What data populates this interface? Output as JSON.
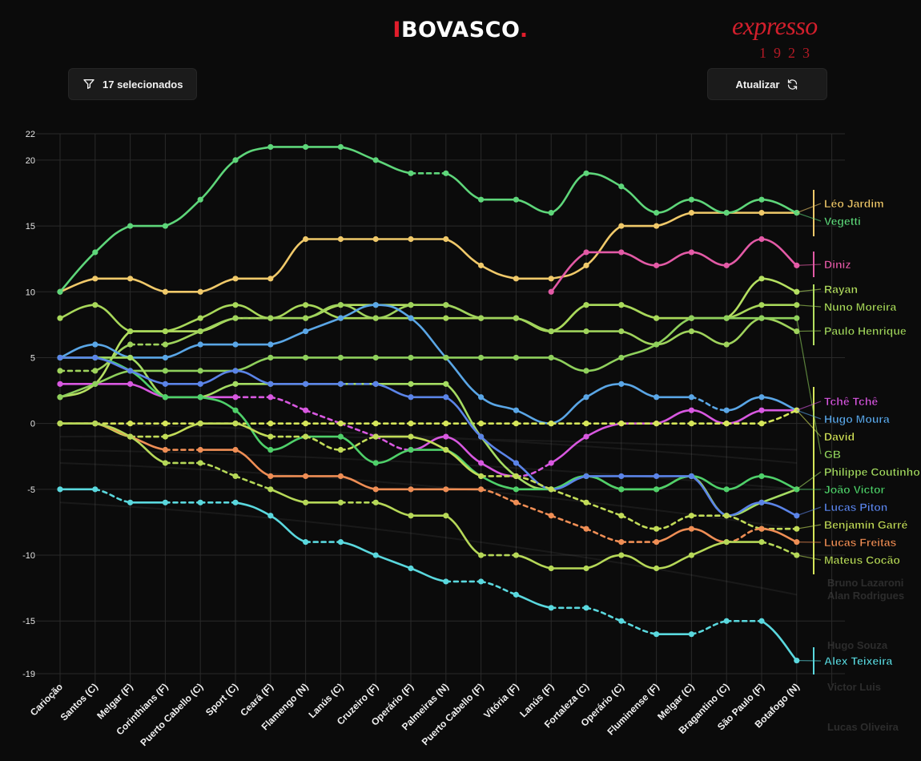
{
  "header": {
    "logo_bar": "I",
    "logo_text": "BOVASCO",
    "logo_dot": ".",
    "brand_word": "expresso",
    "brand_year": "1923"
  },
  "toolbar": {
    "filter_label": "17 selecionados",
    "refresh_label": "Atualizar"
  },
  "colors": {
    "accent": "#e11d2b",
    "background": "#0b0b0b",
    "grid": "#2a2a2a"
  },
  "chart_data": {
    "type": "line",
    "title": "",
    "xlabel": "",
    "ylabel": "",
    "ylim": [
      -19,
      22
    ],
    "yticks": [
      22,
      20,
      15,
      10,
      5,
      0,
      -5,
      -10,
      -15,
      -19
    ],
    "categories": [
      "Carioção",
      "Santos (C)",
      "Melgar (F)",
      "Corinthians (F)",
      "Puerto Cabello (C)",
      "Sport (C)",
      "Ceará (F)",
      "Flamengo (N)",
      "Lanús (C)",
      "Cruzeiro (F)",
      "Operário (F)",
      "Palmeiras (N)",
      "Puerto Cabello (F)",
      "Vitória (F)",
      "Lanús (F)",
      "Fortaleza (C)",
      "Operário (C)",
      "Fluminense (F)",
      "Melgar (C)",
      "Bragantino (C)",
      "São Paulo (F)",
      "Botafogo (N)"
    ],
    "series": [
      {
        "name": "Léo Jardim",
        "color": "#f0c96a",
        "values": [
          10,
          11,
          11,
          10,
          10,
          11,
          11,
          14,
          14,
          14,
          14,
          14,
          12,
          11,
          11,
          12,
          15,
          15,
          16,
          16,
          16,
          16
        ],
        "dashed": []
      },
      {
        "name": "Vegetti",
        "color": "#5ed67a",
        "values": [
          10,
          13,
          15,
          15,
          17,
          20,
          21,
          21,
          21,
          20,
          19,
          19,
          17,
          17,
          16,
          19,
          18,
          16,
          17,
          16,
          17,
          16
        ],
        "dashed": [
          10
        ]
      },
      {
        "name": "Diniz",
        "color": "#e35aa6",
        "values": [
          null,
          null,
          null,
          null,
          null,
          null,
          null,
          null,
          null,
          null,
          null,
          null,
          null,
          null,
          10,
          13,
          13,
          12,
          13,
          12,
          14,
          12
        ],
        "dashed": []
      },
      {
        "name": "Rayan",
        "color": "#b5e061",
        "values": [
          2,
          3,
          7,
          7,
          7,
          8,
          8,
          8,
          9,
          9,
          9,
          9,
          8,
          8,
          7,
          9,
          9,
          8,
          8,
          8,
          11,
          10
        ],
        "dashed": []
      },
      {
        "name": "Nuno Moreira",
        "color": "#a8d85a",
        "values": [
          8,
          9,
          7,
          7,
          8,
          9,
          8,
          9,
          8,
          8,
          8,
          8,
          8,
          8,
          7,
          9,
          9,
          8,
          8,
          8,
          9,
          9
        ],
        "dashed": []
      },
      {
        "name": "Paulo Henrique",
        "color": "#9fd35c",
        "values": [
          4,
          4,
          6,
          6,
          7,
          8,
          8,
          8,
          9,
          8,
          9,
          9,
          8,
          8,
          7,
          7,
          7,
          6,
          7,
          6,
          8,
          7
        ],
        "dashed": [
          0,
          2,
          5
        ]
      },
      {
        "name": "Tchê Tchê",
        "color": "#d858e0",
        "values": [
          3,
          3,
          3,
          2,
          2,
          2,
          2,
          1,
          0,
          -1,
          -2,
          -1,
          -3,
          -4,
          -3,
          -1,
          0,
          0,
          1,
          0,
          1,
          1
        ],
        "dashed": [
          5,
          6,
          7,
          8,
          9,
          13
        ]
      },
      {
        "name": "Hugo Moura",
        "color": "#5aa6e6",
        "values": [
          5,
          6,
          5,
          5,
          6,
          6,
          6,
          7,
          8,
          9,
          8,
          5,
          2,
          1,
          0,
          2,
          3,
          2,
          2,
          1,
          2,
          1
        ],
        "dashed": [
          18
        ]
      },
      {
        "name": "David",
        "color": "#d6e65a",
        "values": [
          0,
          0,
          0,
          0,
          0,
          0,
          0,
          0,
          0,
          0,
          0,
          0,
          0,
          0,
          0,
          0,
          0,
          0,
          0,
          0,
          0,
          1
        ],
        "dashed": [
          0,
          1,
          2,
          3,
          4,
          5,
          6,
          7,
          8,
          9,
          10,
          11,
          12,
          13,
          14,
          15,
          16,
          17,
          18,
          19,
          20
        ]
      },
      {
        "name": "GB",
        "color": "#8fd05c",
        "values": [
          2,
          3,
          4,
          4,
          4,
          4,
          5,
          5,
          5,
          5,
          5,
          5,
          5,
          5,
          5,
          4,
          5,
          6,
          8,
          8,
          8,
          8
        ],
        "dashed": []
      },
      {
        "name": "Philippe Coutinho",
        "color": "#a5dc62",
        "values": [
          5,
          5,
          5,
          2,
          2,
          3,
          3,
          3,
          3,
          3,
          3,
          3,
          -1,
          -4,
          -5,
          -4,
          -5,
          -5,
          -4,
          -7,
          -6,
          -5
        ],
        "dashed": []
      },
      {
        "name": "João Victor",
        "color": "#4fd06a",
        "values": [
          5,
          5,
          4,
          2,
          2,
          1,
          -2,
          -1,
          -1,
          -3,
          -2,
          -2,
          -4,
          -5,
          -5,
          -4,
          -5,
          -5,
          -4,
          -5,
          -4,
          -5
        ],
        "dashed": []
      },
      {
        "name": "Lucas Piton",
        "color": "#5b84e8",
        "values": [
          5,
          5,
          4,
          3,
          3,
          4,
          3,
          3,
          3,
          3,
          2,
          2,
          -1,
          -3,
          -5,
          -4,
          -4,
          -4,
          -4,
          -7,
          -6,
          -7
        ],
        "dashed": [
          8
        ]
      },
      {
        "name": "Benjamín Garré",
        "color": "#c2dc58",
        "values": [
          0,
          0,
          -1,
          -1,
          0,
          0,
          -1,
          -1,
          -2,
          -1,
          -1,
          -2,
          -4,
          -4,
          -5,
          -6,
          -7,
          -8,
          -7,
          -7,
          -8,
          -8
        ],
        "dashed": [
          2,
          6,
          7,
          8,
          12,
          13,
          14,
          15,
          16,
          17,
          18,
          19,
          20
        ]
      },
      {
        "name": "Lucas Freitas",
        "color": "#ef8e55",
        "values": [
          0,
          0,
          -1,
          -2,
          -2,
          -2,
          -4,
          -4,
          -4,
          -5,
          -5,
          -5,
          -5,
          -6,
          -7,
          -8,
          -9,
          -9,
          -8,
          -9,
          -8,
          -9
        ],
        "dashed": [
          3,
          12,
          13,
          14,
          15,
          16,
          19
        ]
      },
      {
        "name": "Mateus Cocão",
        "color": "#b6d858",
        "values": [
          0,
          0,
          -1,
          -3,
          -3,
          -4,
          -5,
          -6,
          -6,
          -6,
          -7,
          -7,
          -10,
          -10,
          -11,
          -11,
          -10,
          -11,
          -10,
          -9,
          -9,
          -10
        ],
        "dashed": [
          3,
          4,
          5,
          8,
          12,
          20
        ]
      },
      {
        "name": "Alex Teixeira",
        "color": "#5ad8de",
        "values": [
          -5,
          -5,
          -6,
          -6,
          -6,
          -6,
          -7,
          -9,
          -9,
          -10,
          -11,
          -12,
          -12,
          -13,
          -14,
          -14,
          -15,
          -16,
          -16,
          -15,
          -15,
          -18
        ],
        "dashed": [
          1,
          3,
          4,
          7,
          11,
          12,
          14,
          15,
          16,
          18,
          19
        ]
      }
    ],
    "faded_labels": [
      "Bruno Lazaroni",
      "Alan Rodrigues",
      "Hugo Souza",
      "Victor Luis",
      "Lucas Oliveira"
    ]
  }
}
